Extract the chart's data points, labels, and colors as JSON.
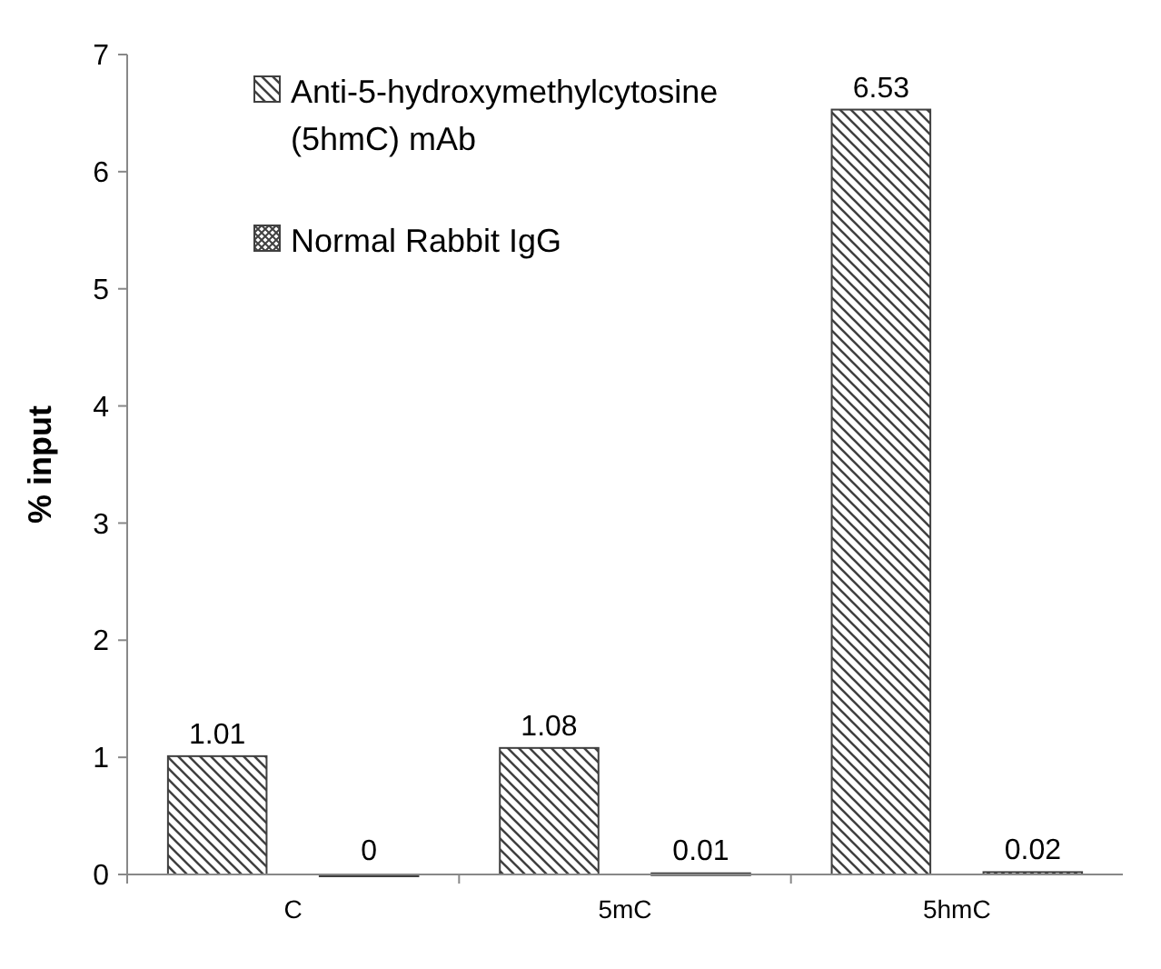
{
  "chart_data": {
    "type": "bar",
    "ylabel": "% input",
    "categories": [
      "C",
      "5mC",
      "5hmC"
    ],
    "series": [
      {
        "name": "Anti-5-hydroxymethylcytosine (5hmC) mAb",
        "color": "#404040",
        "values": [
          1.01,
          1.08,
          6.53
        ]
      },
      {
        "name": "Normal Rabbit IgG",
        "color": "#404040",
        "values": [
          0,
          0.01,
          0.02
        ]
      }
    ],
    "ylim": [
      0,
      7
    ],
    "yticks": [
      0,
      1,
      2,
      3,
      4,
      5,
      6,
      7
    ],
    "data_labels": true,
    "legend": "top left",
    "grid": false
  }
}
